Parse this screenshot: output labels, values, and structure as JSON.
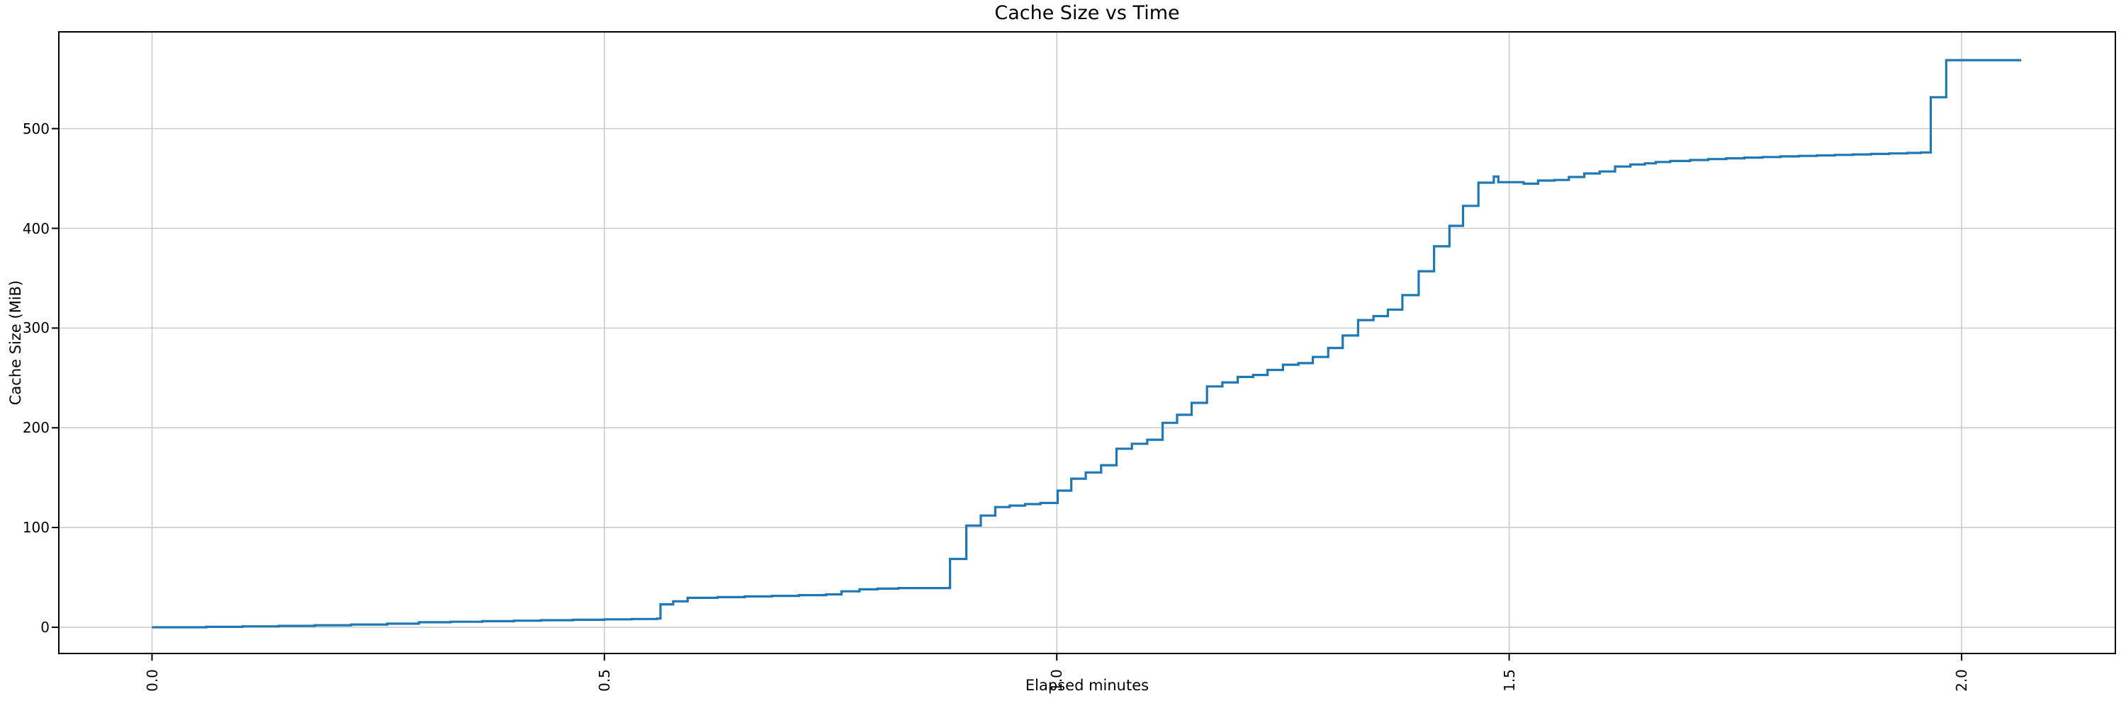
{
  "chart_data": {
    "type": "line",
    "subtype": "step-post",
    "title": "Cache Size vs Time",
    "xlabel": "Elapsed minutes",
    "ylabel": "Cache Size (MiB)",
    "xlim": [
      -0.103,
      2.17
    ],
    "ylim": [
      -26.3,
      597.0
    ],
    "xticks": [
      0.0,
      0.5,
      1.0,
      1.5,
      2.0
    ],
    "xtick_labels": [
      "0.0",
      "0.5",
      "1.0",
      "1.5",
      "2.0"
    ],
    "yticks": [
      0,
      100,
      200,
      300,
      400,
      500
    ],
    "ytick_labels": [
      "0",
      "100",
      "200",
      "300",
      "400",
      "500"
    ],
    "xtick_rotation_deg": 90,
    "grid": true,
    "legend": "none",
    "line_color": "#1f77b4",
    "grid_color": "#cccccc",
    "spine_color": "#000000",
    "background_color": "#ffffff",
    "points": [
      [
        0.0,
        0.0
      ],
      [
        0.06,
        0.4
      ],
      [
        0.1,
        0.9
      ],
      [
        0.14,
        1.4
      ],
      [
        0.18,
        2.0
      ],
      [
        0.22,
        2.7
      ],
      [
        0.26,
        3.6
      ],
      [
        0.295,
        5.0
      ],
      [
        0.33,
        5.5
      ],
      [
        0.365,
        6.1
      ],
      [
        0.4,
        6.6
      ],
      [
        0.43,
        7.1
      ],
      [
        0.465,
        7.5
      ],
      [
        0.5,
        7.9
      ],
      [
        0.53,
        8.3
      ],
      [
        0.558,
        8.7
      ],
      [
        0.562,
        23.0
      ],
      [
        0.576,
        26.0
      ],
      [
        0.592,
        29.5
      ],
      [
        0.625,
        30.2
      ],
      [
        0.655,
        30.9
      ],
      [
        0.685,
        31.5
      ],
      [
        0.715,
        32.2
      ],
      [
        0.745,
        33.0
      ],
      [
        0.762,
        36.0
      ],
      [
        0.782,
        38.0
      ],
      [
        0.802,
        38.7
      ],
      [
        0.825,
        39.3
      ],
      [
        0.882,
        68.5
      ],
      [
        0.9,
        102.0
      ],
      [
        0.916,
        112.0
      ],
      [
        0.932,
        120.5
      ],
      [
        0.948,
        122.0
      ],
      [
        0.965,
        123.5
      ],
      [
        0.982,
        124.6
      ],
      [
        1.001,
        137.0
      ],
      [
        1.016,
        149.0
      ],
      [
        1.032,
        155.2
      ],
      [
        1.049,
        162.5
      ],
      [
        1.066,
        179.0
      ],
      [
        1.083,
        184.0
      ],
      [
        1.1,
        188.0
      ],
      [
        1.117,
        205.0
      ],
      [
        1.133,
        213.0
      ],
      [
        1.149,
        225.0
      ],
      [
        1.166,
        241.5
      ],
      [
        1.183,
        245.5
      ],
      [
        1.2,
        251.0
      ],
      [
        1.217,
        253.0
      ],
      [
        1.233,
        258.0
      ],
      [
        1.25,
        263.3
      ],
      [
        1.267,
        264.8
      ],
      [
        1.283,
        271.0
      ],
      [
        1.3,
        280.0
      ],
      [
        1.316,
        292.5
      ],
      [
        1.333,
        308.0
      ],
      [
        1.35,
        312.0
      ],
      [
        1.366,
        318.5
      ],
      [
        1.382,
        333.0
      ],
      [
        1.4,
        357.0
      ],
      [
        1.417,
        382.0
      ],
      [
        1.434,
        402.5
      ],
      [
        1.449,
        422.5
      ],
      [
        1.466,
        445.8
      ],
      [
        1.483,
        452.0
      ],
      [
        1.488,
        446.3
      ],
      [
        1.516,
        444.8
      ],
      [
        1.532,
        447.9
      ],
      [
        1.55,
        448.5
      ],
      [
        1.566,
        451.5
      ],
      [
        1.583,
        455.0
      ],
      [
        1.6,
        457.0
      ],
      [
        1.617,
        462.0
      ],
      [
        1.634,
        464.0
      ],
      [
        1.65,
        465.2
      ],
      [
        1.662,
        466.5
      ],
      [
        1.678,
        467.5
      ],
      [
        1.7,
        468.5
      ],
      [
        1.72,
        469.4
      ],
      [
        1.74,
        470.2
      ],
      [
        1.76,
        470.9
      ],
      [
        1.78,
        471.5
      ],
      [
        1.8,
        472.1
      ],
      [
        1.82,
        472.6
      ],
      [
        1.84,
        473.1
      ],
      [
        1.86,
        473.6
      ],
      [
        1.88,
        474.1
      ],
      [
        1.9,
        474.6
      ],
      [
        1.92,
        475.1
      ],
      [
        1.94,
        475.6
      ],
      [
        1.955,
        476.1
      ],
      [
        1.966,
        531.5
      ],
      [
        1.983,
        568.6
      ],
      [
        2.066,
        568.6
      ]
    ]
  }
}
